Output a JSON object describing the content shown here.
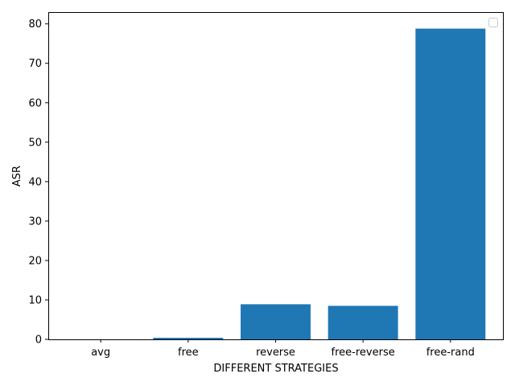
{
  "chart_data": {
    "type": "bar",
    "categories": [
      "avg",
      "free",
      "reverse",
      "free-reverse",
      "free-rand"
    ],
    "values": [
      0.0,
      0.4,
      8.9,
      8.5,
      78.8
    ],
    "xlabel": "DIFFERENT STRATEGIES",
    "ylabel": "ASR",
    "ylim": [
      0,
      83
    ],
    "yticks": [
      0,
      10,
      20,
      30,
      40,
      50,
      60,
      70,
      80
    ],
    "grid": false,
    "legend": "top-right",
    "bar_color": "#1f77b4"
  }
}
